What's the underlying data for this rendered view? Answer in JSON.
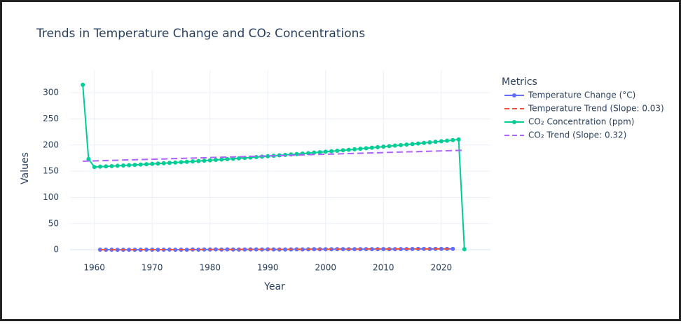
{
  "chart_data": {
    "type": "line",
    "title": "Trends in Temperature Change and CO₂ Concentrations",
    "x_label": "Year",
    "y_label": "Values",
    "legend_title": "Metrics",
    "legend_position": "right",
    "xlim": [
      1955.8,
      2028.5
    ],
    "ylim": [
      -32,
      343
    ],
    "xticks": [
      1960,
      1970,
      1980,
      1990,
      2000,
      2010,
      2020
    ],
    "yticks": [
      0,
      50,
      100,
      150,
      200,
      250,
      300
    ],
    "grid": true,
    "series": [
      {
        "name": "Temperature Change (°C)",
        "color": "#636efa",
        "markers": true,
        "dash": false,
        "x": [
          1961,
          1962,
          1963,
          1964,
          1965,
          1966,
          1967,
          1968,
          1969,
          1970,
          1971,
          1972,
          1973,
          1974,
          1975,
          1976,
          1977,
          1978,
          1979,
          1980,
          1981,
          1982,
          1983,
          1984,
          1985,
          1986,
          1987,
          1988,
          1989,
          1990,
          1991,
          1992,
          1993,
          1994,
          1995,
          1996,
          1997,
          1998,
          1999,
          2000,
          2001,
          2002,
          2003,
          2004,
          2005,
          2006,
          2007,
          2008,
          2009,
          2010,
          2011,
          2012,
          2013,
          2014,
          2015,
          2016,
          2017,
          2018,
          2019,
          2020,
          2021,
          2022
        ],
        "values": [
          0.1,
          0.0,
          0.1,
          -0.2,
          -0.1,
          0.0,
          0.0,
          -0.1,
          0.1,
          0.1,
          -0.1,
          0.1,
          0.3,
          -0.1,
          0.1,
          -0.1,
          0.4,
          0.2,
          0.4,
          0.5,
          0.6,
          0.3,
          0.6,
          0.4,
          0.3,
          0.4,
          0.6,
          0.7,
          0.5,
          0.8,
          0.7,
          0.4,
          0.5,
          0.6,
          0.8,
          0.7,
          0.8,
          1.1,
          0.9,
          0.9,
          1.0,
          1.1,
          1.1,
          1.0,
          1.2,
          1.1,
          1.2,
          1.1,
          1.2,
          1.3,
          1.2,
          1.2,
          1.3,
          1.3,
          1.5,
          1.6,
          1.6,
          1.5,
          1.6,
          1.7,
          1.6,
          1.6
        ]
      },
      {
        "name": "Temperature Trend (Slope: 0.03)",
        "color": "#ef553b",
        "markers": false,
        "dash": true,
        "x": [
          1961,
          2022
        ],
        "values": [
          -0.1,
          1.7
        ]
      },
      {
        "name": "CO₂ Concentration (ppm)",
        "color": "#00cc96",
        "markers": true,
        "dash": false,
        "x": [
          1958,
          1959,
          1960,
          1961,
          1962,
          1963,
          1964,
          1965,
          1966,
          1967,
          1968,
          1969,
          1970,
          1971,
          1972,
          1973,
          1974,
          1975,
          1976,
          1977,
          1978,
          1979,
          1980,
          1981,
          1982,
          1983,
          1984,
          1985,
          1986,
          1987,
          1988,
          1989,
          1990,
          1991,
          1992,
          1993,
          1994,
          1995,
          1996,
          1997,
          1998,
          1999,
          2000,
          2001,
          2002,
          2003,
          2004,
          2005,
          2006,
          2007,
          2008,
          2009,
          2010,
          2011,
          2012,
          2013,
          2014,
          2015,
          2016,
          2017,
          2018,
          2019,
          2020,
          2021,
          2022,
          2023,
          2024
        ],
        "values": [
          315,
          173,
          158.0,
          158.6,
          159.1,
          159.7,
          160.3,
          160.9,
          161.5,
          162.1,
          162.7,
          163.3,
          164.0,
          164.6,
          165.2,
          165.9,
          166.6,
          167.3,
          167.9,
          168.7,
          169.4,
          170.1,
          170.8,
          171.5,
          172.3,
          173.0,
          173.8,
          174.6,
          175.3,
          176.1,
          176.9,
          177.7,
          178.6,
          179.4,
          180.2,
          181.1,
          181.9,
          182.8,
          183.6,
          184.5,
          185.4,
          186.3,
          187.2,
          188.1,
          189.0,
          190.0,
          190.9,
          191.9,
          192.8,
          193.8,
          194.8,
          195.8,
          196.8,
          197.8,
          198.8,
          199.8,
          200.8,
          201.9,
          202.9,
          204.0,
          205.0,
          206.1,
          207.2,
          208.3,
          209.4,
          210.5,
          1
        ]
      },
      {
        "name": "CO₂ Trend (Slope: 0.32)",
        "color": "#ab63fa",
        "markers": false,
        "dash": true,
        "x": [
          1958,
          2024
        ],
        "values": [
          169,
          190
        ]
      }
    ]
  }
}
